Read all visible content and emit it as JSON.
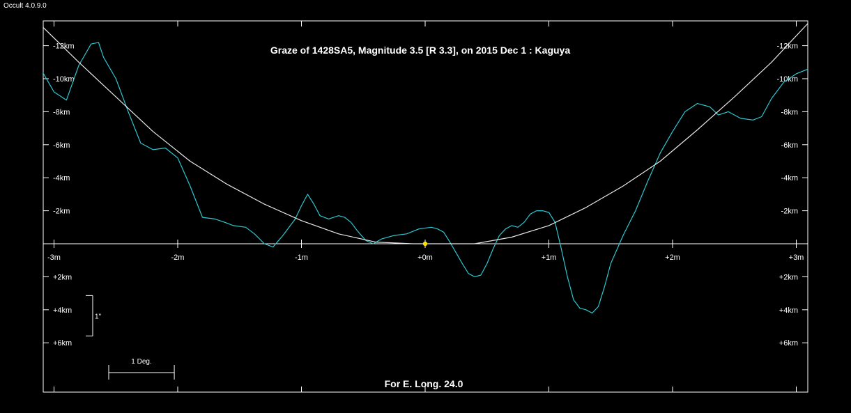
{
  "app": {
    "title": "Occult 4.0.9.0"
  },
  "chart_data": {
    "type": "line",
    "title": "Graze of  1428SA5,  Magnitude 3.5 [R 3.3],  on 2015 Dec  1  :  Kaguya",
    "footer": "For E. Long. 24.0",
    "x_ticks": [
      {
        "value": -3,
        "label": "-3m"
      },
      {
        "value": -2,
        "label": "-2m"
      },
      {
        "value": -1,
        "label": "-1m"
      },
      {
        "value": 0,
        "label": "+0m"
      },
      {
        "value": 1,
        "label": "+1m"
      },
      {
        "value": 2,
        "label": "+2m"
      },
      {
        "value": 3,
        "label": "+3m"
      }
    ],
    "y_ticks": [
      {
        "value": -12,
        "label": "-12km"
      },
      {
        "value": -10,
        "label": "-10km"
      },
      {
        "value": -8,
        "label": "-8km"
      },
      {
        "value": -6,
        "label": "-6km"
      },
      {
        "value": -4,
        "label": "-4km"
      },
      {
        "value": -2,
        "label": "-2km"
      },
      {
        "value": 2,
        "label": "+2km"
      },
      {
        "value": 4,
        "label": "+4km"
      },
      {
        "value": 6,
        "label": "+6km"
      }
    ],
    "xlim": [
      -3.1,
      3.1
    ],
    "ylim": [
      -13.5,
      9.0
    ],
    "colors": {
      "profile": "#2ec8d2",
      "limb_curve": "#e8e8e8",
      "center_dot": "#ffe000",
      "axes": "#ffffff"
    },
    "scale_bar_vertical": {
      "label": "1\"",
      "from_km": 2.8,
      "to_km": 5.5
    },
    "scale_bar_horizontal": {
      "label": "1 Deg.",
      "length_minutes": 0.53
    },
    "center_point": {
      "x": 0,
      "y": 0
    },
    "series": [
      {
        "kind": "limb_profile",
        "x": [
          -3.1,
          -3.0,
          -2.9,
          -2.8,
          -2.7,
          -2.64,
          -2.6,
          -2.5,
          -2.4,
          -2.3,
          -2.2,
          -2.1,
          -2.0,
          -1.9,
          -1.8,
          -1.7,
          -1.62,
          -1.55,
          -1.45,
          -1.38,
          -1.3,
          -1.23,
          -1.15,
          -1.05,
          -1.0,
          -0.95,
          -0.9,
          -0.85,
          -0.78,
          -0.7,
          -0.65,
          -0.6,
          -0.55,
          -0.48,
          -0.42,
          -0.35,
          -0.25,
          -0.15,
          -0.05,
          0.05,
          0.1,
          0.15,
          0.2,
          0.3,
          0.35,
          0.4,
          0.45,
          0.5,
          0.55,
          0.6,
          0.65,
          0.7,
          0.75,
          0.8,
          0.85,
          0.9,
          0.95,
          1.0,
          1.05,
          1.1,
          1.15,
          1.2,
          1.25,
          1.3,
          1.35,
          1.4,
          1.45,
          1.5,
          1.6,
          1.7,
          1.8,
          1.9,
          2.0,
          2.1,
          2.2,
          2.3,
          2.37,
          2.45,
          2.55,
          2.65,
          2.72,
          2.8,
          2.9,
          3.0,
          3.1
        ],
        "y": [
          -10.5,
          -9.2,
          -8.7,
          -10.8,
          -12.1,
          -12.2,
          -11.3,
          -10.0,
          -8.0,
          -6.1,
          -5.7,
          -5.8,
          -5.2,
          -3.5,
          -1.6,
          -1.5,
          -1.3,
          -1.1,
          -1.0,
          -0.6,
          0.0,
          0.2,
          -0.5,
          -1.5,
          -2.3,
          -3.0,
          -2.4,
          -1.7,
          -1.5,
          -1.7,
          -1.6,
          -1.3,
          -0.8,
          -0.2,
          0.0,
          -0.3,
          -0.5,
          -0.6,
          -0.9,
          -1.0,
          -0.9,
          -0.7,
          -0.1,
          1.2,
          1.8,
          2.0,
          1.9,
          1.2,
          0.3,
          -0.5,
          -0.9,
          -1.1,
          -1.0,
          -1.3,
          -1.8,
          -2.0,
          -2.0,
          -1.9,
          -1.3,
          0.3,
          2.0,
          3.4,
          3.9,
          4.0,
          4.2,
          3.8,
          2.6,
          1.2,
          -0.5,
          -2.0,
          -3.8,
          -5.5,
          -6.8,
          -8.0,
          -8.5,
          -8.3,
          -7.8,
          -8.0,
          -7.6,
          -7.5,
          -7.7,
          -8.8,
          -9.8,
          -10.3,
          -10.6
        ]
      },
      {
        "kind": "graze_curve",
        "x": [
          -3.1,
          -2.8,
          -2.5,
          -2.2,
          -1.9,
          -1.6,
          -1.3,
          -1.0,
          -0.7,
          -0.4,
          -0.1,
          0.1,
          0.4,
          0.7,
          1.0,
          1.3,
          1.6,
          1.9,
          2.2,
          2.5,
          2.8,
          3.1
        ],
        "y": [
          -13.2,
          -11.0,
          -8.9,
          -6.8,
          -5.0,
          -3.6,
          -2.4,
          -1.4,
          -0.6,
          -0.1,
          0.0,
          0.0,
          0.0,
          -0.4,
          -1.1,
          -2.2,
          -3.5,
          -5.0,
          -6.9,
          -8.9,
          -11.0,
          -13.4
        ]
      }
    ]
  }
}
